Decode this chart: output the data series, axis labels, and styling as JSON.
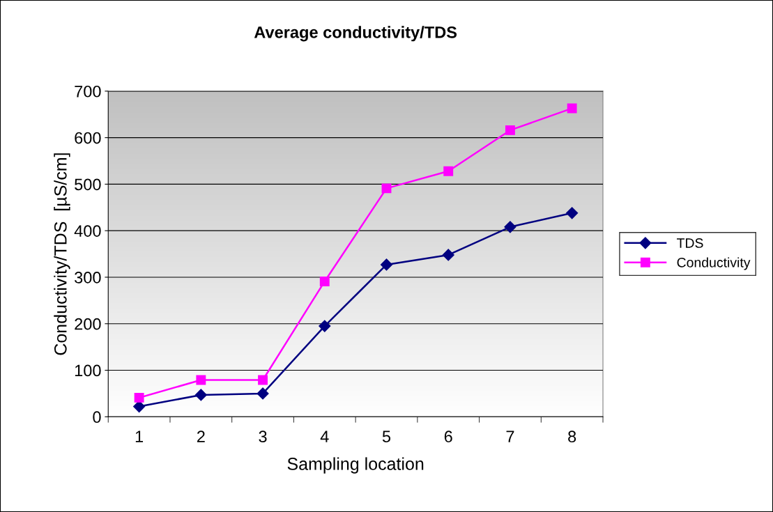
{
  "chart_data": {
    "type": "line",
    "title": "Average conductivity/TDS",
    "xlabel": "Sampling location",
    "ylabel": "Conductivity/TDS  [µS/cm]",
    "categories": [
      "1",
      "2",
      "3",
      "4",
      "5",
      "6",
      "7",
      "8"
    ],
    "series": [
      {
        "name": "TDS",
        "color": "#000080",
        "marker": "diamond",
        "values": [
          22,
          47,
          50,
          195,
          327,
          348,
          408,
          438
        ]
      },
      {
        "name": "Conductivity",
        "color": "#ff00ff",
        "marker": "square",
        "values": [
          41,
          79,
          79,
          291,
          491,
          528,
          616,
          663
        ]
      }
    ],
    "ylim": [
      0,
      700
    ],
    "yticks": [
      0,
      100,
      200,
      300,
      400,
      500,
      600,
      700
    ],
    "grid": "y",
    "legend": "right"
  }
}
